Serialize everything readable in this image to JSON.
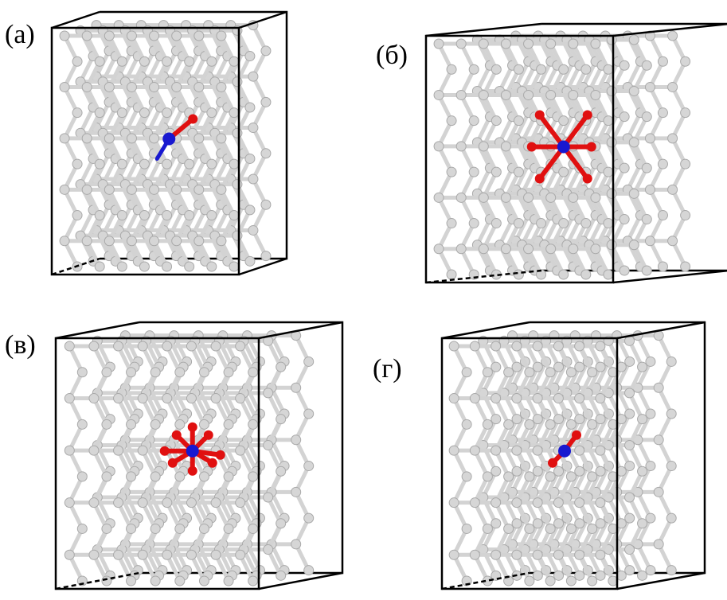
{
  "panels": [
    {
      "label": "(а)"
    },
    {
      "label": "(б)"
    },
    {
      "label": "(в)"
    },
    {
      "label": "(г)"
    }
  ]
}
